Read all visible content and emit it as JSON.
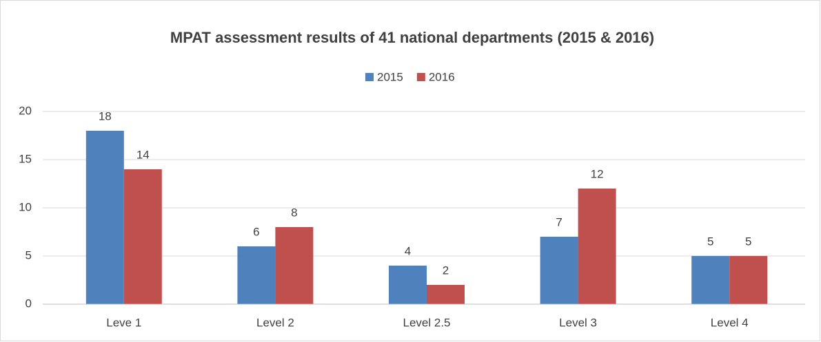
{
  "chart_data": {
    "type": "bar",
    "title": "MPAT assessment results of 41 national departments (2015 & 2016)",
    "categories": [
      "Leve 1",
      "Level 2",
      "Level 2.5",
      "Level 3",
      "Level 4"
    ],
    "series": [
      {
        "name": "2015",
        "color": "#4f81bd",
        "values": [
          18,
          6,
          4,
          7,
          5
        ]
      },
      {
        "name": "2016",
        "color": "#c0504d",
        "values": [
          14,
          8,
          2,
          12,
          5
        ]
      }
    ],
    "ylim": [
      0,
      20
    ],
    "yticks": [
      0,
      5,
      10,
      15,
      20
    ],
    "grid": true,
    "legend": "top"
  }
}
